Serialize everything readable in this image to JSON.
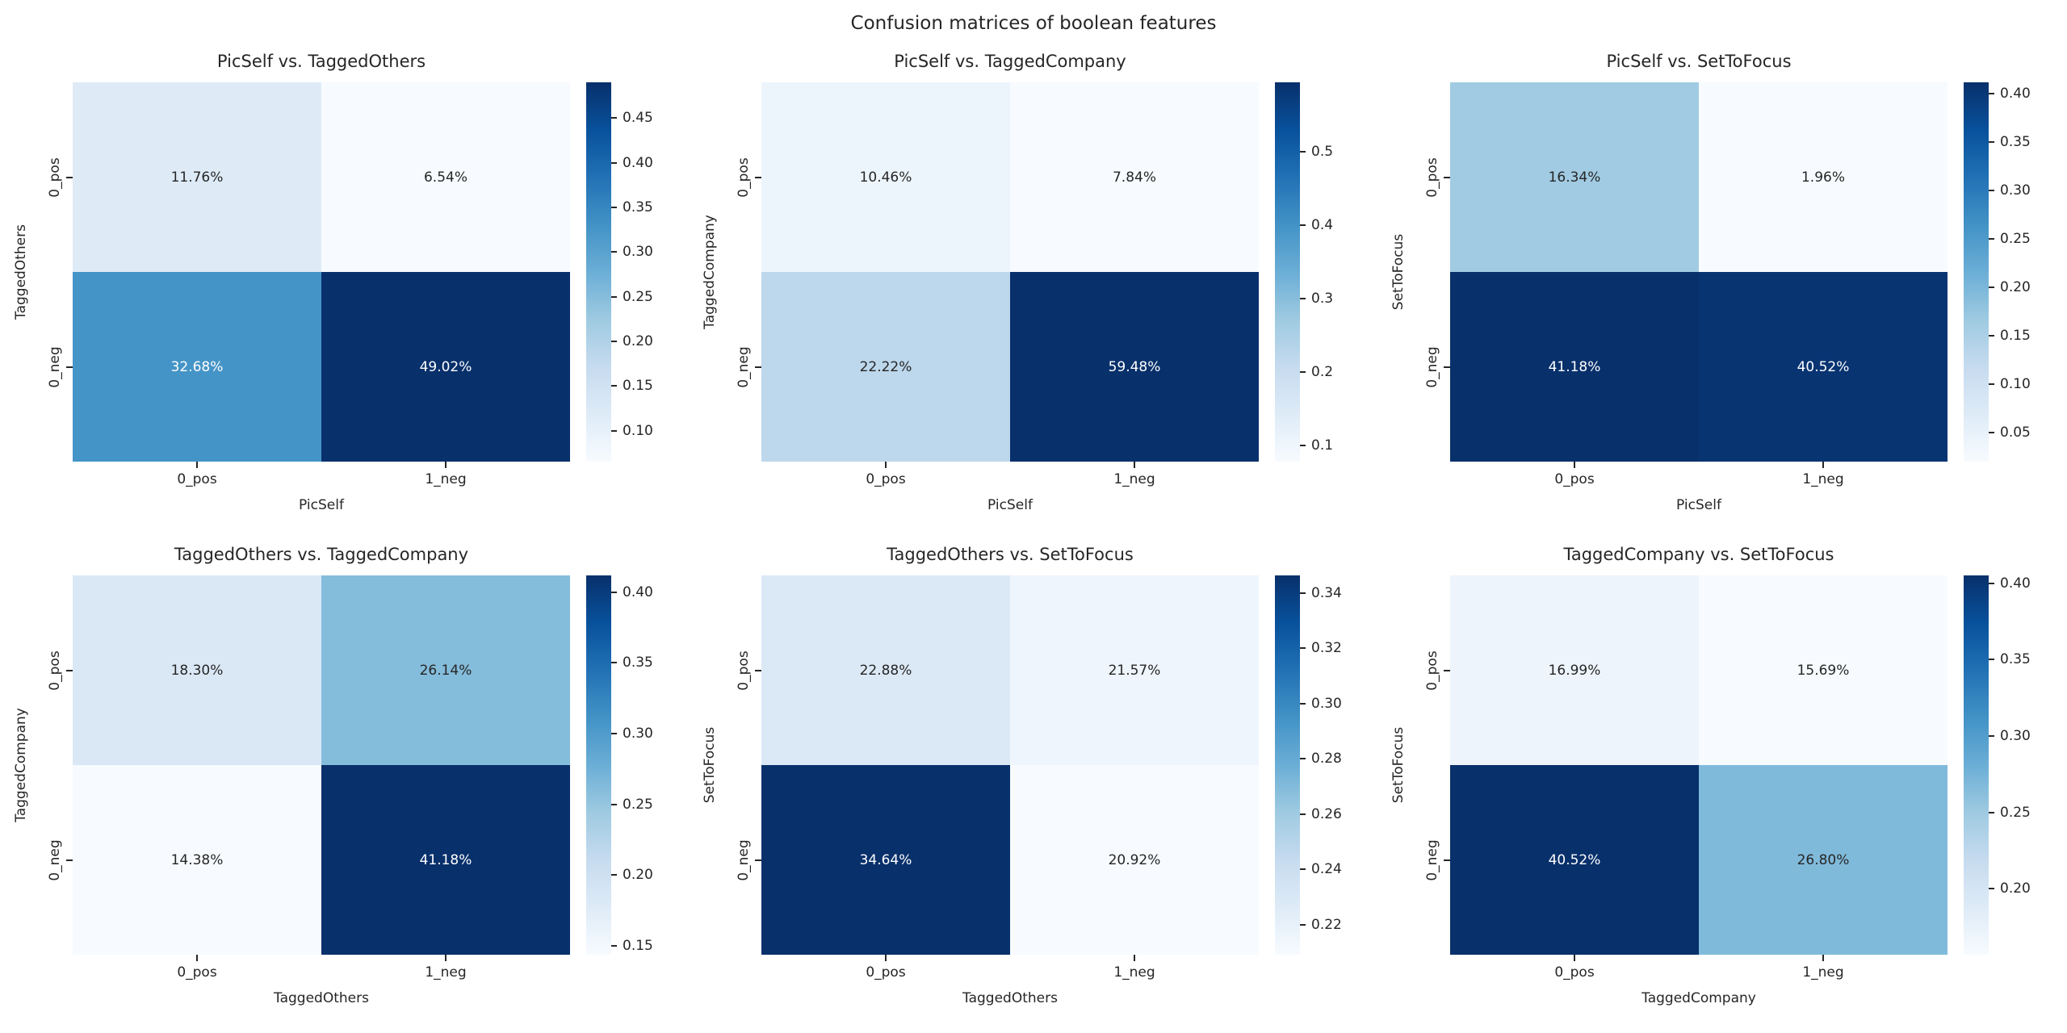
{
  "figure": {
    "title": "Confusion matrices of boolean features",
    "background": "#ffffff",
    "text_color": "#262626",
    "colormap": "Blues",
    "colormap_stops": [
      "#f7fbff",
      "#deebf7",
      "#c6dbef",
      "#9ecae1",
      "#6baed6",
      "#4292c6",
      "#2171b5",
      "#08519c",
      "#08306b"
    ],
    "cell_text_light": "#ffffff",
    "cell_text_dark": "#262626"
  },
  "chart_data": [
    {
      "type": "heatmap",
      "title": "PicSelf vs. TaggedOthers",
      "xlabel": "PicSelf",
      "ylabel": "TaggedOthers",
      "x_categories": [
        "0_pos",
        "1_neg"
      ],
      "y_categories": [
        "0_pos",
        "0_neg"
      ],
      "values": [
        [
          0.1176,
          0.0654
        ],
        [
          0.3268,
          0.4902
        ]
      ],
      "cell_labels": [
        [
          "11.76%",
          "6.54%"
        ],
        [
          "32.68%",
          "49.02%"
        ]
      ],
      "vmin": 0.0654,
      "vmax": 0.4902,
      "colorbar_ticks": [
        {
          "v": 0.1,
          "label": "0.10"
        },
        {
          "v": 0.15,
          "label": "0.15"
        },
        {
          "v": 0.2,
          "label": "0.20"
        },
        {
          "v": 0.25,
          "label": "0.25"
        },
        {
          "v": 0.3,
          "label": "0.30"
        },
        {
          "v": 0.35,
          "label": "0.35"
        },
        {
          "v": 0.4,
          "label": "0.40"
        },
        {
          "v": 0.45,
          "label": "0.45"
        }
      ]
    },
    {
      "type": "heatmap",
      "title": "PicSelf vs. TaggedCompany",
      "xlabel": "PicSelf",
      "ylabel": "TaggedCompany",
      "x_categories": [
        "0_pos",
        "1_neg"
      ],
      "y_categories": [
        "0_pos",
        "0_neg"
      ],
      "values": [
        [
          0.1046,
          0.0784
        ],
        [
          0.2222,
          0.5948
        ]
      ],
      "cell_labels": [
        [
          "10.46%",
          "7.84%"
        ],
        [
          "22.22%",
          "59.48%"
        ]
      ],
      "vmin": 0.0784,
      "vmax": 0.5948,
      "colorbar_ticks": [
        {
          "v": 0.1,
          "label": "0.1"
        },
        {
          "v": 0.2,
          "label": "0.2"
        },
        {
          "v": 0.3,
          "label": "0.3"
        },
        {
          "v": 0.4,
          "label": "0.4"
        },
        {
          "v": 0.5,
          "label": "0.5"
        }
      ]
    },
    {
      "type": "heatmap",
      "title": "PicSelf vs. SetToFocus",
      "xlabel": "PicSelf",
      "ylabel": "SetToFocus",
      "x_categories": [
        "0_pos",
        "1_neg"
      ],
      "y_categories": [
        "0_pos",
        "0_neg"
      ],
      "values": [
        [
          0.1634,
          0.0196
        ],
        [
          0.4118,
          0.4052
        ]
      ],
      "cell_labels": [
        [
          "16.34%",
          "1.96%"
        ],
        [
          "41.18%",
          "40.52%"
        ]
      ],
      "vmin": 0.0196,
      "vmax": 0.4118,
      "colorbar_ticks": [
        {
          "v": 0.05,
          "label": "0.05"
        },
        {
          "v": 0.1,
          "label": "0.10"
        },
        {
          "v": 0.15,
          "label": "0.15"
        },
        {
          "v": 0.2,
          "label": "0.20"
        },
        {
          "v": 0.25,
          "label": "0.25"
        },
        {
          "v": 0.3,
          "label": "0.30"
        },
        {
          "v": 0.35,
          "label": "0.35"
        },
        {
          "v": 0.4,
          "label": "0.40"
        }
      ]
    },
    {
      "type": "heatmap",
      "title": "TaggedOthers vs. TaggedCompany",
      "xlabel": "TaggedOthers",
      "ylabel": "TaggedCompany",
      "x_categories": [
        "0_pos",
        "1_neg"
      ],
      "y_categories": [
        "0_pos",
        "0_neg"
      ],
      "values": [
        [
          0.183,
          0.2614
        ],
        [
          0.1438,
          0.4118
        ]
      ],
      "cell_labels": [
        [
          "18.30%",
          "26.14%"
        ],
        [
          "14.38%",
          "41.18%"
        ]
      ],
      "vmin": 0.1438,
      "vmax": 0.4118,
      "colorbar_ticks": [
        {
          "v": 0.15,
          "label": "0.15"
        },
        {
          "v": 0.2,
          "label": "0.20"
        },
        {
          "v": 0.25,
          "label": "0.25"
        },
        {
          "v": 0.3,
          "label": "0.30"
        },
        {
          "v": 0.35,
          "label": "0.35"
        },
        {
          "v": 0.4,
          "label": "0.40"
        }
      ]
    },
    {
      "type": "heatmap",
      "title": "TaggedOthers vs. SetToFocus",
      "xlabel": "TaggedOthers",
      "ylabel": "SetToFocus",
      "x_categories": [
        "0_pos",
        "1_neg"
      ],
      "y_categories": [
        "0_pos",
        "0_neg"
      ],
      "values": [
        [
          0.2288,
          0.2157
        ],
        [
          0.3464,
          0.2092
        ]
      ],
      "cell_labels": [
        [
          "22.88%",
          "21.57%"
        ],
        [
          "34.64%",
          "20.92%"
        ]
      ],
      "vmin": 0.2092,
      "vmax": 0.3464,
      "colorbar_ticks": [
        {
          "v": 0.22,
          "label": "0.22"
        },
        {
          "v": 0.24,
          "label": "0.24"
        },
        {
          "v": 0.26,
          "label": "0.26"
        },
        {
          "v": 0.28,
          "label": "0.28"
        },
        {
          "v": 0.3,
          "label": "0.30"
        },
        {
          "v": 0.32,
          "label": "0.32"
        },
        {
          "v": 0.34,
          "label": "0.34"
        }
      ]
    },
    {
      "type": "heatmap",
      "title": "TaggedCompany vs. SetToFocus",
      "xlabel": "TaggedCompany",
      "ylabel": "SetToFocus",
      "x_categories": [
        "0_pos",
        "1_neg"
      ],
      "y_categories": [
        "0_pos",
        "0_neg"
      ],
      "values": [
        [
          0.1699,
          0.1569
        ],
        [
          0.4052,
          0.268
        ]
      ],
      "cell_labels": [
        [
          "16.99%",
          "15.69%"
        ],
        [
          "40.52%",
          "26.80%"
        ]
      ],
      "vmin": 0.1569,
      "vmax": 0.4052,
      "colorbar_ticks": [
        {
          "v": 0.2,
          "label": "0.20"
        },
        {
          "v": 0.25,
          "label": "0.25"
        },
        {
          "v": 0.3,
          "label": "0.30"
        },
        {
          "v": 0.35,
          "label": "0.35"
        },
        {
          "v": 0.4,
          "label": "0.40"
        }
      ]
    }
  ]
}
